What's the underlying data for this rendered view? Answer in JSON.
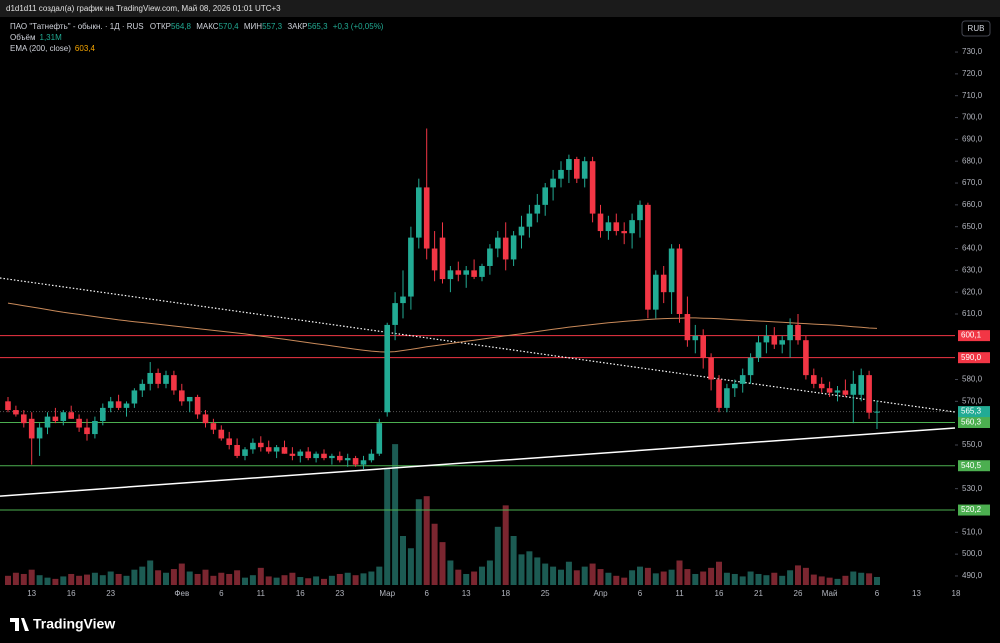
{
  "header": "d1d1d11 создал(а) график на TradingView.com, Май 08, 2026 01:01 UTC+3",
  "brand": "TradingView",
  "currency": "RUB",
  "chart_data": {
    "type": "candlestick",
    "legend": {
      "symbol": "ПАО \"Татнефть\" - обыкн. · 1Д · RUS",
      "ohlc_labels": [
        "ОТКР",
        "МАКС",
        "МИН",
        "ЗАКР"
      ],
      "ohlc_values": [
        "564,8",
        "570,4",
        "557,3",
        "565,3"
      ],
      "change": "+0,3 (+0,05%)",
      "volume_label": "Объём",
      "volume_value": "1,31M",
      "ema_label": "EMA (200, close)",
      "ema_value": "603,4"
    },
    "up_color": "#22ab94",
    "down_color": "#f23645",
    "volume_up_color": "#1c5b53",
    "volume_down_color": "#7b2630",
    "ema_color": "#c98a5a",
    "categories": [
      null,
      null,
      null,
      "13",
      null,
      null,
      null,
      null,
      "16",
      null,
      null,
      null,
      null,
      "23",
      null,
      null,
      null,
      null,
      null,
      null,
      null,
      null,
      "Фев",
      null,
      null,
      null,
      null,
      "6",
      null,
      null,
      null,
      null,
      "11",
      null,
      null,
      null,
      null,
      "16",
      null,
      null,
      null,
      null,
      "23",
      null,
      null,
      null,
      null,
      null,
      "Мар",
      null,
      null,
      null,
      null,
      "6",
      null,
      null,
      null,
      null,
      "13",
      null,
      null,
      null,
      null,
      "18",
      null,
      null,
      null,
      null,
      "25",
      null,
      null,
      null,
      null,
      null,
      null,
      "Апр",
      null,
      null,
      null,
      null,
      "6",
      null,
      null,
      null,
      null,
      "11",
      null,
      null,
      null,
      null,
      "16",
      null,
      null,
      null,
      null,
      "21",
      null,
      null,
      null,
      null,
      "26",
      null,
      null,
      null,
      "Май",
      null,
      null,
      null,
      null,
      null,
      "6",
      null,
      null,
      null,
      null,
      "13",
      null,
      null,
      null,
      null,
      "18"
    ],
    "open": [
      570,
      566,
      564,
      562,
      553,
      558,
      563,
      561,
      565,
      562,
      558,
      555,
      561,
      567,
      570,
      567,
      569,
      575,
      578,
      583,
      578,
      582,
      575,
      570,
      572,
      564,
      560,
      557,
      553,
      550,
      545,
      548,
      551,
      549,
      547,
      549,
      546,
      545,
      547,
      544,
      546,
      544,
      545,
      543,
      544,
      541,
      543,
      546,
      565,
      605,
      615,
      618,
      645,
      668,
      640,
      645,
      626,
      630,
      628,
      630,
      627,
      632,
      640,
      645,
      635,
      646,
      650,
      656,
      660,
      668,
      672,
      676,
      681,
      672,
      680,
      656,
      648,
      652,
      648,
      647,
      653,
      660,
      612,
      628,
      620,
      640,
      610,
      598,
      600,
      590,
      580,
      567,
      576,
      578,
      582,
      590,
      597,
      600,
      596,
      598,
      605,
      598,
      582,
      578,
      576,
      574,
      575,
      573,
      573,
      582,
      564.8,
      null,
      null,
      null,
      null,
      null,
      null,
      null,
      null,
      null,
      null
    ],
    "high": [
      572,
      568,
      566,
      565,
      560,
      565,
      567,
      566,
      568,
      564,
      562,
      563,
      569,
      572,
      573,
      570,
      576,
      580,
      588,
      585,
      584,
      584,
      578,
      572,
      573,
      566,
      562,
      559,
      556,
      553,
      549,
      553,
      554,
      552,
      550,
      552,
      549,
      548,
      549,
      547,
      548,
      546,
      547,
      546,
      545,
      545,
      548,
      562,
      606,
      620,
      630,
      650,
      672,
      695,
      648,
      652,
      632,
      634,
      632,
      635,
      633,
      642,
      648,
      652,
      648,
      655,
      660,
      665,
      670,
      676,
      680,
      683,
      682,
      682,
      682,
      660,
      655,
      656,
      652,
      656,
      662,
      661,
      630,
      632,
      642,
      642,
      618,
      605,
      603,
      592,
      582,
      578,
      580,
      585,
      592,
      600,
      605,
      604,
      600,
      608,
      610,
      600,
      585,
      581,
      579,
      577,
      580,
      584,
      585,
      584,
      570.4,
      null,
      null,
      null,
      null,
      null,
      null,
      null,
      null,
      null,
      null
    ],
    "low": [
      565,
      563,
      558,
      541,
      545,
      555,
      560,
      559,
      562,
      556,
      552,
      553,
      559,
      565,
      566,
      563,
      567,
      572,
      575,
      576,
      576,
      573,
      568,
      565,
      562,
      558,
      555,
      552,
      548,
      544,
      543,
      546,
      547,
      546,
      544,
      546,
      543,
      542,
      543,
      542,
      543,
      541,
      542,
      540,
      540,
      539,
      542,
      545,
      563,
      598,
      608,
      612,
      640,
      635,
      625,
      624,
      620,
      625,
      622,
      626,
      625,
      628,
      636,
      630,
      632,
      640,
      645,
      652,
      655,
      662,
      668,
      670,
      670,
      668,
      652,
      645,
      644,
      646,
      642,
      640,
      645,
      608,
      608,
      615,
      610,
      606,
      595,
      592,
      585,
      575,
      565,
      565,
      572,
      574,
      578,
      588,
      592,
      594,
      592,
      590,
      596,
      580,
      576,
      574,
      572,
      570,
      572,
      560,
      570,
      562,
      557.3,
      null,
      null,
      null,
      null,
      null,
      null,
      null,
      null,
      null,
      null
    ],
    "close": [
      566,
      564,
      560,
      553,
      558,
      563,
      561,
      565,
      562,
      558,
      555,
      561,
      567,
      570,
      567,
      569,
      575,
      578,
      583,
      578,
      582,
      575,
      570,
      572,
      564,
      560,
      557,
      553,
      550,
      545,
      548,
      551,
      549,
      547,
      549,
      546,
      545,
      547,
      544,
      546,
      544,
      545,
      543,
      544,
      541,
      543,
      546,
      560,
      605,
      615,
      618,
      645,
      668,
      640,
      630,
      626,
      630,
      628,
      630,
      627,
      632,
      640,
      645,
      635,
      646,
      650,
      656,
      660,
      668,
      672,
      676,
      681,
      672,
      680,
      656,
      648,
      652,
      648,
      647,
      653,
      660,
      612,
      628,
      620,
      640,
      610,
      598,
      600,
      590,
      580,
      567,
      576,
      578,
      582,
      590,
      597,
      600,
      596,
      598,
      605,
      598,
      582,
      578,
      576,
      574,
      575,
      573,
      578,
      582,
      564.8,
      565.3,
      null,
      null,
      null,
      null,
      null,
      null,
      null,
      null,
      null,
      null
    ],
    "volume": [
      1.5,
      2.0,
      1.8,
      2.5,
      1.6,
      1.2,
      1.0,
      1.4,
      1.8,
      1.5,
      1.7,
      2.0,
      1.6,
      2.2,
      1.8,
      1.5,
      2.5,
      3.0,
      4.0,
      2.4,
      2.0,
      2.6,
      3.5,
      2.2,
      1.8,
      2.5,
      1.5,
      2.0,
      1.8,
      2.4,
      1.2,
      1.6,
      2.8,
      1.4,
      1.2,
      1.6,
      2.0,
      1.3,
      1.1,
      1.4,
      1.0,
      1.5,
      1.8,
      2.0,
      1.6,
      1.9,
      2.2,
      3.0,
      19.0,
      23.0,
      8.0,
      6.0,
      14.0,
      14.5,
      10.0,
      7.0,
      4.0,
      2.5,
      1.8,
      2.2,
      3.0,
      4.0,
      9.5,
      13.0,
      8.0,
      5.0,
      5.5,
      4.5,
      3.5,
      3.0,
      2.5,
      3.8,
      2.4,
      3.0,
      3.5,
      2.6,
      2.0,
      1.5,
      1.2,
      2.4,
      3.0,
      2.8,
      1.9,
      2.2,
      2.5,
      4.0,
      2.6,
      1.8,
      2.2,
      2.8,
      3.8,
      2.0,
      1.8,
      1.4,
      2.2,
      1.8,
      1.6,
      2.0,
      1.5,
      2.4,
      3.2,
      2.8,
      1.7,
      1.4,
      1.2,
      1.0,
      1.5,
      2.2,
      2.0,
      1.9,
      1.31,
      null,
      null,
      null,
      null,
      null,
      null,
      null,
      null,
      null,
      null
    ],
    "ema": [
      615.0,
      614.4,
      613.8,
      613.2,
      612.6,
      612.0,
      611.4,
      610.8,
      610.3,
      609.8,
      609.3,
      608.8,
      608.3,
      607.8,
      607.3,
      606.9,
      606.5,
      606.1,
      605.7,
      605.3,
      604.9,
      604.5,
      604.1,
      603.7,
      603.3,
      602.9,
      602.5,
      602.1,
      601.7,
      601.3,
      600.9,
      600.4,
      599.9,
      599.4,
      598.9,
      598.4,
      597.9,
      597.4,
      596.9,
      596.4,
      595.9,
      595.4,
      594.9,
      594.4,
      593.9,
      593.4,
      593.0,
      592.7,
      592.6,
      592.8,
      593.3,
      593.8,
      594.4,
      595.0,
      595.5,
      596.0,
      596.5,
      597.0,
      597.5,
      598.0,
      598.5,
      599.0,
      599.5,
      600.0,
      600.5,
      601.0,
      601.5,
      602.0,
      602.5,
      603.0,
      603.5,
      604.0,
      604.4,
      604.8,
      605.2,
      605.6,
      606.0,
      606.3,
      606.6,
      606.9,
      607.2,
      607.5,
      607.7,
      607.9,
      608.0,
      608.1,
      608.2,
      608.2,
      608.1,
      608.0,
      607.8,
      607.6,
      607.4,
      607.2,
      607.0,
      606.8,
      606.6,
      606.4,
      606.2,
      606.0,
      605.8,
      605.6,
      605.4,
      605.2,
      605.0,
      604.8,
      604.5,
      604.2,
      603.9,
      603.6,
      603.4,
      null,
      null,
      null,
      null,
      null,
      null,
      null,
      null,
      null,
      null
    ],
    "ylim": [
      476.7,
      745.6
    ],
    "volume_ylim": [
      0,
      80
    ],
    "yticks": [
      {
        "value": 730,
        "label": "730,0"
      },
      {
        "value": 720,
        "label": "720,0"
      },
      {
        "value": 710,
        "label": "710,0"
      },
      {
        "value": 700,
        "label": "700,0"
      },
      {
        "value": 690,
        "label": "690,0"
      },
      {
        "value": 680,
        "label": "680,0"
      },
      {
        "value": 670,
        "label": "670,0"
      },
      {
        "value": 660,
        "label": "660,0"
      },
      {
        "value": 650,
        "label": "650,0"
      },
      {
        "value": 640,
        "label": "640,0"
      },
      {
        "value": 630,
        "label": "630,0"
      },
      {
        "value": 620,
        "label": "620,0"
      },
      {
        "value": 610,
        "label": "610,0"
      },
      {
        "value": 580,
        "label": "580,0"
      },
      {
        "value": 570,
        "label": "570,0"
      },
      {
        "value": 550,
        "label": "550,0"
      },
      {
        "value": 530,
        "label": "530,0"
      },
      {
        "value": 510,
        "label": "510,0"
      },
      {
        "value": 500,
        "label": "500,0"
      },
      {
        "value": 490,
        "label": "490,0"
      }
    ],
    "levels": [
      {
        "value": 600.1,
        "label": "600,1",
        "color": "#f23645"
      },
      {
        "value": 590.0,
        "label": "590,0",
        "color": "#f23645"
      },
      {
        "value": 560.3,
        "label": "560,3",
        "color": "#4caf50"
      },
      {
        "value": 540.5,
        "label": "540,5",
        "color": "#4caf50"
      },
      {
        "value": 520.2,
        "label": "520,2",
        "color": "#4caf50"
      }
    ],
    "last_price": {
      "value": 565.3,
      "label": "565,3",
      "color": "#22ab94"
    },
    "trendlines": [
      {
        "values": [
          626.5,
          565.1
        ],
        "style": "dotted"
      },
      {
        "values": [
          526.6,
          557.8
        ],
        "style": "solid"
      }
    ],
    "grid": false
  }
}
